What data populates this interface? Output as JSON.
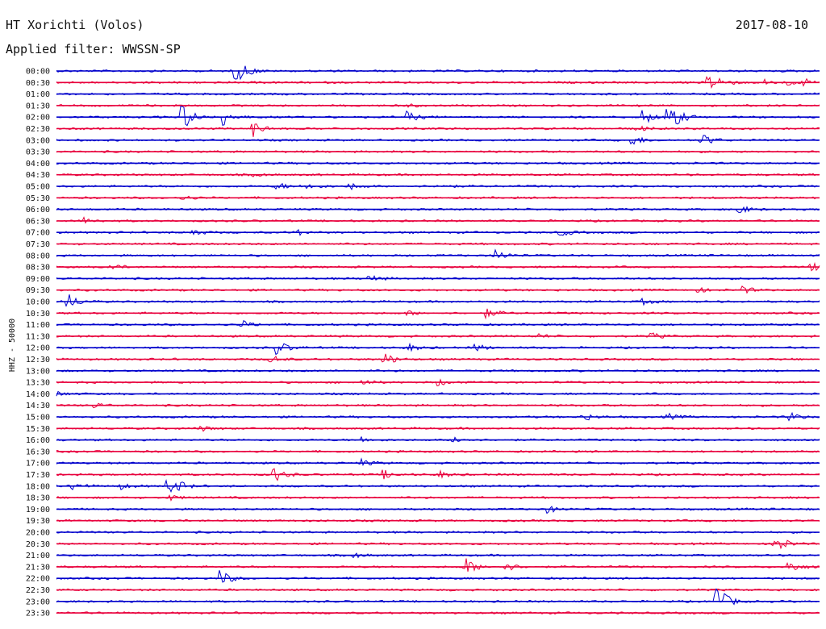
{
  "header": {
    "station": "HT Xorichti (Volos)",
    "date": "2017-08-10",
    "filter": "Applied filter: WWSSN-SP"
  },
  "axis": {
    "channel_label": "HHZ - 50000"
  },
  "trace_colors": {
    "even": "#0000cc",
    "odd": "#e8003c"
  },
  "traces": [
    {
      "time": "00:00",
      "events": [
        [
          0.235,
          10
        ],
        [
          0.24,
          6
        ]
      ]
    },
    {
      "time": "00:30",
      "events": [
        [
          0.855,
          9
        ],
        [
          0.87,
          4
        ],
        [
          0.93,
          3
        ],
        [
          0.96,
          3
        ],
        [
          0.98,
          4
        ]
      ]
    },
    {
      "time": "01:00",
      "events": []
    },
    {
      "time": "01:30",
      "events": [
        [
          0.46,
          2
        ]
      ]
    },
    {
      "time": "02:00",
      "events": [
        [
          0.165,
          18
        ],
        [
          0.22,
          10
        ],
        [
          0.46,
          7
        ],
        [
          0.77,
          9
        ],
        [
          0.8,
          10
        ],
        [
          0.81,
          8
        ]
      ]
    },
    {
      "time": "02:30",
      "events": [
        [
          0.255,
          12
        ],
        [
          0.76,
          4
        ]
      ]
    },
    {
      "time": "03:00",
      "events": [
        [
          0.755,
          6
        ],
        [
          0.845,
          9
        ]
      ]
    },
    {
      "time": "03:30",
      "events": []
    },
    {
      "time": "04:00",
      "events": []
    },
    {
      "time": "04:30",
      "events": [
        [
          0.26,
          2
        ]
      ]
    },
    {
      "time": "05:00",
      "events": [
        [
          0.29,
          4
        ],
        [
          0.33,
          4
        ],
        [
          0.385,
          4
        ],
        [
          0.5,
          3
        ]
      ]
    },
    {
      "time": "05:30",
      "events": [
        [
          0.165,
          3
        ]
      ]
    },
    {
      "time": "06:00",
      "events": [
        [
          0.895,
          5
        ]
      ]
    },
    {
      "time": "06:30",
      "events": [
        [
          0.035,
          4
        ]
      ]
    },
    {
      "time": "07:00",
      "events": [
        [
          0.175,
          6
        ],
        [
          0.31,
          5
        ],
        [
          0.66,
          5
        ]
      ]
    },
    {
      "time": "07:30",
      "events": []
    },
    {
      "time": "08:00",
      "events": [
        [
          0.575,
          8
        ]
      ]
    },
    {
      "time": "08:30",
      "events": [
        [
          0.07,
          4
        ],
        [
          0.99,
          5
        ]
      ]
    },
    {
      "time": "09:00",
      "events": [
        [
          0.41,
          4
        ]
      ]
    },
    {
      "time": "09:30",
      "events": [
        [
          0.84,
          3
        ],
        [
          0.9,
          4
        ]
      ]
    },
    {
      "time": "10:00",
      "events": [
        [
          0.015,
          10
        ],
        [
          0.77,
          3
        ]
      ]
    },
    {
      "time": "10:30",
      "events": [
        [
          0.46,
          3
        ],
        [
          0.565,
          5
        ]
      ]
    },
    {
      "time": "11:00",
      "events": [
        [
          0.24,
          6
        ]
      ]
    },
    {
      "time": "11:30",
      "events": [
        [
          0.63,
          3
        ],
        [
          0.78,
          4
        ]
      ]
    },
    {
      "time": "12:00",
      "events": [
        [
          0.29,
          9
        ],
        [
          0.46,
          5
        ],
        [
          0.55,
          4
        ]
      ]
    },
    {
      "time": "12:30",
      "events": [
        [
          0.28,
          6
        ],
        [
          0.43,
          8
        ]
      ]
    },
    {
      "time": "13:00",
      "events": []
    },
    {
      "time": "13:30",
      "events": [
        [
          0.4,
          4
        ],
        [
          0.5,
          4
        ]
      ]
    },
    {
      "time": "14:00",
      "events": [
        [
          0.0,
          3
        ]
      ]
    },
    {
      "time": "14:30",
      "events": [
        [
          0.05,
          3
        ]
      ]
    },
    {
      "time": "15:00",
      "events": [
        [
          0.69,
          5
        ],
        [
          0.8,
          4
        ],
        [
          0.96,
          6
        ]
      ]
    },
    {
      "time": "15:30",
      "events": [
        [
          0.19,
          3
        ]
      ]
    },
    {
      "time": "16:00",
      "events": [
        [
          0.4,
          3
        ],
        [
          0.52,
          5
        ]
      ]
    },
    {
      "time": "16:30",
      "events": []
    },
    {
      "time": "17:00",
      "events": [
        [
          0.4,
          4
        ]
      ]
    },
    {
      "time": "17:30",
      "events": [
        [
          0.285,
          9
        ],
        [
          0.43,
          5
        ],
        [
          0.5,
          5
        ]
      ]
    },
    {
      "time": "18:00",
      "events": [
        [
          0.02,
          6
        ],
        [
          0.08,
          5
        ],
        [
          0.145,
          9
        ],
        [
          0.155,
          6
        ]
      ]
    },
    {
      "time": "18:30",
      "events": [
        [
          0.15,
          3
        ]
      ]
    },
    {
      "time": "19:00",
      "events": [
        [
          0.645,
          4
        ]
      ]
    },
    {
      "time": "19:30",
      "events": []
    },
    {
      "time": "20:00",
      "events": []
    },
    {
      "time": "20:30",
      "events": [
        [
          0.94,
          16
        ]
      ]
    },
    {
      "time": "21:00",
      "events": [
        [
          0.39,
          3
        ]
      ]
    },
    {
      "time": "21:30",
      "events": [
        [
          0.535,
          12
        ],
        [
          0.59,
          5
        ],
        [
          0.96,
          8
        ]
      ]
    },
    {
      "time": "22:00",
      "events": [
        [
          0.215,
          10
        ]
      ]
    },
    {
      "time": "22:30",
      "events": []
    },
    {
      "time": "23:00",
      "events": [
        [
          0.865,
          22
        ]
      ]
    },
    {
      "time": "23:30",
      "events": []
    }
  ]
}
